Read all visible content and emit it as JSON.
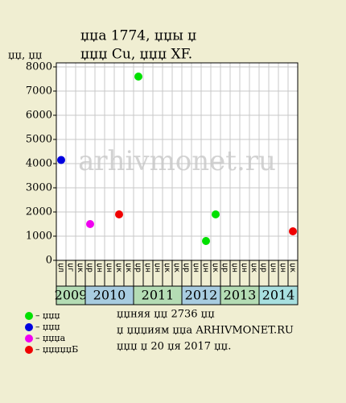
{
  "chart_data": {
    "type": "scatter",
    "title": "џџа 1774, џџы џ",
    "subtitle": "џџџ Cu, џџџ XF.",
    "y_label": "џџ, џџ",
    "watermark": "arhivmonet.ru",
    "categories": [
      "џл",
      "џг",
      "џк",
      "џр",
      "џн",
      "џн",
      "џк",
      "џк",
      "џр",
      "џн",
      "џн",
      "џк",
      "џк",
      "џр",
      "џн",
      "џн",
      "џк",
      "џр",
      "џн",
      "џн",
      "џк",
      "џр",
      "џн",
      "џн",
      "џк"
    ],
    "years": [
      {
        "label": "2009",
        "span": 3,
        "color": "#b4dcb4"
      },
      {
        "label": "2010",
        "span": 5,
        "color": "#a8cce0"
      },
      {
        "label": "2011",
        "span": 5,
        "color": "#b4dcb4"
      },
      {
        "label": "2012",
        "span": 4,
        "color": "#a8cce0"
      },
      {
        "label": "2013",
        "span": 4,
        "color": "#b4dcb4"
      },
      {
        "label": "2014",
        "span": 4,
        "color": "#a8e0e0"
      }
    ],
    "series": [
      {
        "name": "– џџџ",
        "color": "#00e000",
        "x": [
          8,
          15,
          16
        ],
        "values": [
          7600,
          800,
          1900
        ]
      },
      {
        "name": "– џџџ",
        "color": "#0000e0",
        "x": [
          0
        ],
        "values": [
          4150
        ]
      },
      {
        "name": "– џџџа",
        "color": "#f000f0",
        "x": [
          3
        ],
        "values": [
          1500
        ]
      },
      {
        "name": "– џџџџџБ",
        "color": "#f00000",
        "x": [
          6,
          24
        ],
        "values": [
          1900,
          1200
        ]
      }
    ],
    "ylim": [
      0,
      8000
    ],
    "yticks": [
      0,
      1000,
      2000,
      3000,
      4000,
      5000,
      6000,
      7000,
      8000
    ],
    "grid": true,
    "notes": [
      "џџняя џџ 2736 џџ",
      "џ џџџиям џџа ARHIVMONET.RU",
      "џџџ џ 20 џя 2017 џџ."
    ]
  }
}
